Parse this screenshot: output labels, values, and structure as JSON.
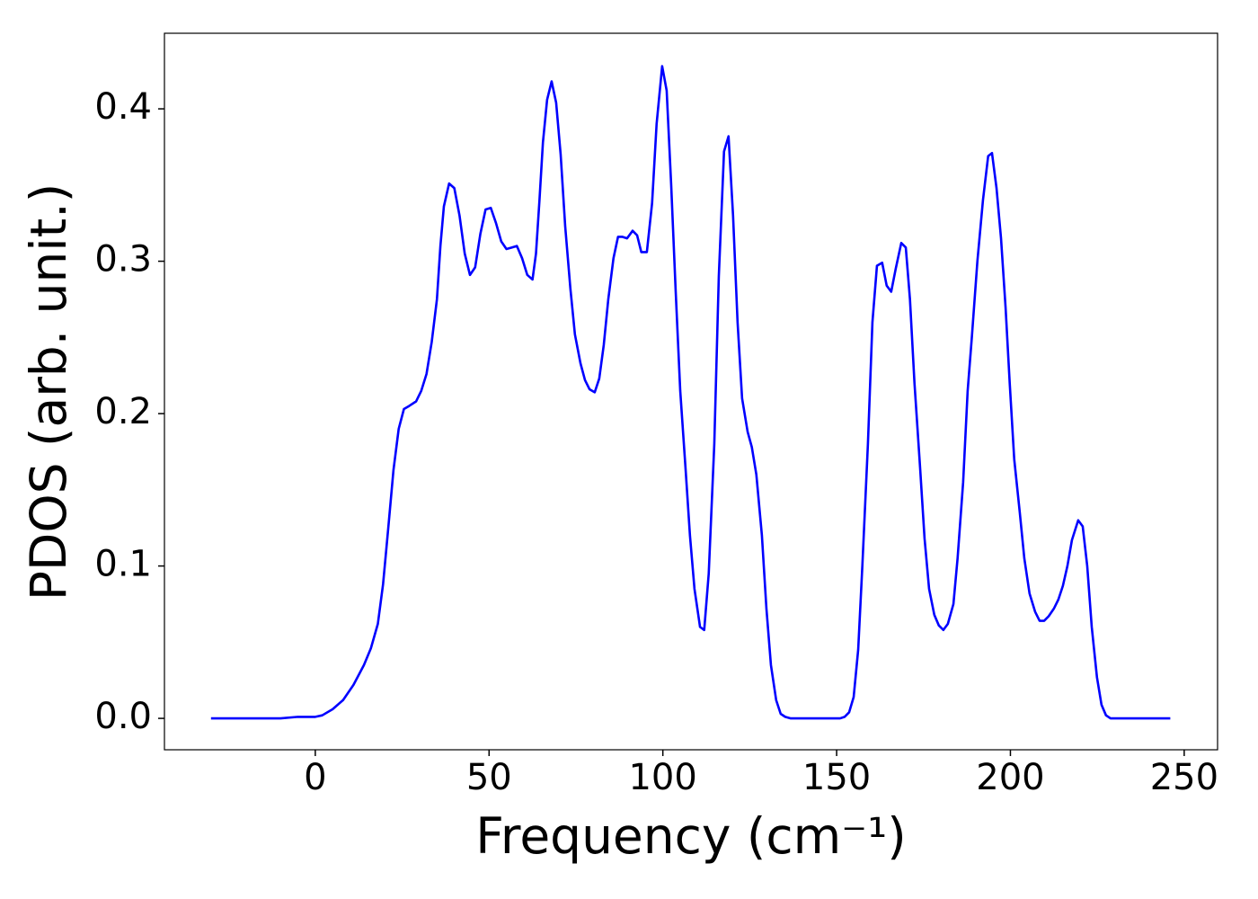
{
  "chart_data": {
    "type": "line",
    "xlabel": "Frequency (cm⁻¹)",
    "ylabel": "PDOS (arb. unit.)",
    "xlim": [
      -43.4,
      259.6
    ],
    "ylim": [
      -0.0206,
      0.4496
    ],
    "xticks": [
      0,
      50,
      100,
      150,
      200,
      250
    ],
    "yticks": [
      {
        "value": 0,
        "label": "0.0"
      },
      0.1,
      0.2,
      0.3,
      0.4
    ],
    "x": [
      -30,
      -10,
      -5,
      0,
      2,
      5,
      8,
      11,
      14,
      16,
      18,
      19.5,
      21,
      22.5,
      24,
      25.5,
      27,
      29,
      30.5,
      32,
      33.5,
      35,
      36,
      37,
      38.5,
      40,
      41.5,
      43,
      44.5,
      46,
      47.5,
      49,
      50.5,
      52,
      53.5,
      55,
      56.5,
      58,
      59.5,
      61,
      62.5,
      63.5,
      64.5,
      65.5,
      66.7,
      68,
      69.3,
      70.6,
      71.9,
      73.4,
      74.7,
      76.3,
      77.6,
      78.9,
      80.4,
      81.7,
      83,
      84.3,
      85.8,
      87.1,
      88.4,
      89.7,
      91.3,
      92.6,
      93.8,
      95.4,
      96.9,
      98.2,
      99.8,
      101.1,
      102.4,
      103.7,
      105,
      106.5,
      107.8,
      109.1,
      110.7,
      111.9,
      113.2,
      114.8,
      116.1,
      117.6,
      118.9,
      120.2,
      121.5,
      122.8,
      124.4,
      125.6,
      126.9,
      128.5,
      129.8,
      131.1,
      132.6,
      133.9,
      135.2,
      136.8,
      151,
      152.3,
      153.6,
      154.9,
      156.2,
      157.4,
      159,
      160.3,
      161.6,
      163.1,
      164.4,
      165.7,
      167,
      168.6,
      169.9,
      171.1,
      172.4,
      174,
      175.3,
      176.6,
      178.1,
      179.4,
      180.7,
      182,
      183.6,
      184.8,
      186.4,
      187.7,
      188.9,
      190.5,
      192.1,
      193.6,
      194.7,
      196,
      197.3,
      198.6,
      199.8,
      201.1,
      202.7,
      204,
      205.5,
      207.1,
      208.4,
      209.7,
      211,
      212.5,
      213.8,
      215.1,
      216.4,
      217.7,
      219.5,
      220.8,
      222.1,
      223.4,
      224.9,
      226.2,
      227.5,
      228.8,
      246
    ],
    "series": [
      {
        "color": "#0000ff",
        "values": [
          0,
          0,
          0.001,
          0.001,
          0.002,
          0.006,
          0.012,
          0.022,
          0.035,
          0.046,
          0.062,
          0.088,
          0.125,
          0.163,
          0.19,
          0.203,
          0.205,
          0.208,
          0.215,
          0.226,
          0.247,
          0.275,
          0.31,
          0.336,
          0.351,
          0.348,
          0.33,
          0.305,
          0.291,
          0.296,
          0.318,
          0.334,
          0.335,
          0.325,
          0.313,
          0.308,
          0.309,
          0.31,
          0.302,
          0.291,
          0.288,
          0.305,
          0.34,
          0.378,
          0.406,
          0.418,
          0.404,
          0.37,
          0.323,
          0.282,
          0.252,
          0.233,
          0.222,
          0.216,
          0.214,
          0.223,
          0.245,
          0.275,
          0.302,
          0.316,
          0.316,
          0.315,
          0.32,
          0.317,
          0.306,
          0.306,
          0.338,
          0.39,
          0.428,
          0.412,
          0.35,
          0.28,
          0.215,
          0.165,
          0.12,
          0.085,
          0.06,
          0.058,
          0.095,
          0.18,
          0.29,
          0.372,
          0.382,
          0.33,
          0.26,
          0.21,
          0.188,
          0.178,
          0.16,
          0.12,
          0.072,
          0.035,
          0.012,
          0.003,
          0.001,
          0,
          0,
          0.001,
          0.004,
          0.014,
          0.045,
          0.1,
          0.18,
          0.26,
          0.297,
          0.299,
          0.284,
          0.28,
          0.295,
          0.312,
          0.309,
          0.275,
          0.22,
          0.165,
          0.118,
          0.085,
          0.068,
          0.061,
          0.058,
          0.062,
          0.075,
          0.105,
          0.155,
          0.215,
          0.25,
          0.3,
          0.34,
          0.369,
          0.371,
          0.348,
          0.315,
          0.27,
          0.22,
          0.17,
          0.135,
          0.105,
          0.082,
          0.07,
          0.064,
          0.064,
          0.067,
          0.072,
          0.078,
          0.087,
          0.1,
          0.117,
          0.13,
          0.126,
          0.1,
          0.06,
          0.027,
          0.009,
          0.002,
          0,
          0
        ]
      }
    ]
  }
}
